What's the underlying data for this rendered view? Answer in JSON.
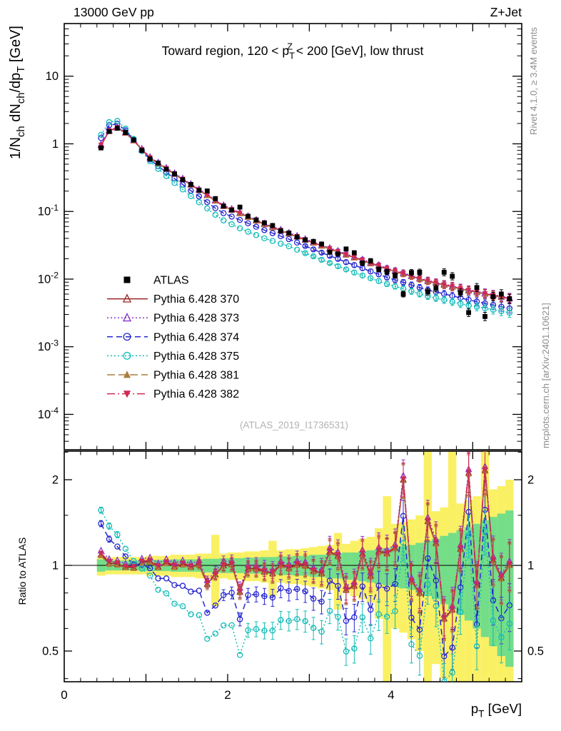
{
  "header": {
    "left": "13000 GeV pp",
    "right": "Z+Jet"
  },
  "side_labels": {
    "right_top": "Rivet 4.1.0, ≥ 3.4M events",
    "right_bottom": "mcplots.cern.ch [arXiv:2401.10621]"
  },
  "watermark": "(ATLAS_2019_I1736531)",
  "chart_data": {
    "type": "line",
    "title": "Toward region, 120 < p_{T}^{Z} < 200 [GeV], low thrust",
    "xlabel": "p_{T} [GeV]",
    "ylabel": "1/N_{ch} dN_{ch}/dp_{T} [GeV]",
    "ratio_ylabel": "Ratio to ATLAS",
    "x_range": [
      0,
      5.6
    ],
    "y_scale": "log",
    "y_range": [
      3e-05,
      60
    ],
    "ratio_scale": "log",
    "ratio_range": [
      0.39,
      2.52
    ],
    "x_ticks_labeled": [
      0,
      2,
      4
    ],
    "y_ticks": [
      {
        "exp": 1,
        "label": "10"
      },
      {
        "exp": 0,
        "label": "1"
      },
      {
        "exp": -1,
        "label": "10^{-1}"
      },
      {
        "exp": -2,
        "label": "10^{-2}"
      },
      {
        "exp": -3,
        "label": "10^{-3}"
      },
      {
        "exp": -4,
        "label": "10^{-4}"
      }
    ],
    "ratio_ticks_labeled": [
      2,
      1,
      0.5
    ],
    "ratio_ticks_minor": [
      0.4,
      0.6,
      0.7,
      0.8,
      0.9,
      1.5,
      2.5
    ],
    "x_bin_width": 0.1,
    "x": [
      0.45,
      0.55,
      0.65,
      0.75,
      0.85,
      0.95,
      1.05,
      1.15,
      1.25,
      1.35,
      1.45,
      1.55,
      1.65,
      1.75,
      1.85,
      1.95,
      2.05,
      2.15,
      2.25,
      2.35,
      2.45,
      2.55,
      2.65,
      2.75,
      2.85,
      2.95,
      3.05,
      3.15,
      3.25,
      3.35,
      3.45,
      3.55,
      3.65,
      3.75,
      3.85,
      3.95,
      4.05,
      4.15,
      4.25,
      4.35,
      4.45,
      4.55,
      4.65,
      4.75,
      4.85,
      4.95,
      5.05,
      5.15,
      5.25,
      5.35,
      5.45
    ],
    "series": [
      {
        "name": "ATLAS",
        "color": "#000000",
        "marker": "square-filled",
        "line": "none",
        "values": [
          0.87,
          1.52,
          1.7,
          1.47,
          1.14,
          0.8,
          0.6,
          0.52,
          0.42,
          0.36,
          0.295,
          0.251,
          0.205,
          0.201,
          0.155,
          0.12,
          0.105,
          0.116,
          0.085,
          0.075,
          0.068,
          0.062,
          0.052,
          0.048,
          0.042,
          0.038,
          0.036,
          0.033,
          0.025,
          0.0235,
          0.0279,
          0.0245,
          0.0172,
          0.0186,
          0.0139,
          0.0128,
          0.0113,
          0.006,
          0.0125,
          0.0126,
          0.0065,
          0.0073,
          0.0126,
          0.011,
          0.0063,
          0.0032,
          0.0075,
          0.0028,
          0.0055,
          0.006,
          0.0051
        ]
      },
      {
        "name": "Pythia 6.428 370",
        "color": "#9a2525",
        "marker": "triangle-up-open",
        "line": "solid",
        "values": [
          0.95,
          1.55,
          1.72,
          1.45,
          1.12,
          0.82,
          0.62,
          0.514,
          0.429,
          0.357,
          0.298,
          0.248,
          0.207,
          0.173,
          0.144,
          0.12,
          0.106,
          0.0937,
          0.0828,
          0.0731,
          0.0646,
          0.0581,
          0.0522,
          0.047,
          0.0423,
          0.038,
          0.0344,
          0.031,
          0.028,
          0.0254,
          0.0229,
          0.0208,
          0.0189,
          0.0171,
          0.0156,
          0.0141,
          0.013,
          0.012,
          0.011,
          0.0101,
          0.0093,
          0.00875,
          0.0082,
          0.0077,
          0.0072,
          0.00676,
          0.0064,
          0.00605,
          0.00573,
          0.00542,
          0.00513
        ]
      },
      {
        "name": "Pythia 6.428 373",
        "color": "#8833cc",
        "marker": "triangle-up-open",
        "line": "dotted",
        "values": [
          0.98,
          1.6,
          1.77,
          1.49,
          1.15,
          0.845,
          0.639,
          0.529,
          0.442,
          0.368,
          0.307,
          0.255,
          0.213,
          0.178,
          0.148,
          0.124,
          0.109,
          0.0965,
          0.0853,
          0.0753,
          0.0665,
          0.0598,
          0.0538,
          0.0484,
          0.0436,
          0.0391,
          0.0354,
          0.0319,
          0.0288,
          0.0262,
          0.0236,
          0.0214,
          0.0195,
          0.0176,
          0.0161,
          0.0145,
          0.0134,
          0.0124,
          0.0113,
          0.0104,
          0.00958,
          0.00901,
          0.00845,
          0.00793,
          0.00742,
          0.00696,
          0.00659,
          0.00623,
          0.0059,
          0.00558,
          0.00528
        ]
      },
      {
        "name": "Pythia 6.428 374",
        "color": "#2727cf",
        "marker": "circle-open",
        "line": "dashed",
        "values": [
          1.22,
          1.88,
          1.98,
          1.58,
          1.15,
          0.804,
          0.586,
          0.468,
          0.378,
          0.307,
          0.25,
          0.203,
          0.167,
          0.137,
          0.112,
          0.0944,
          0.0841,
          0.075,
          0.0668,
          0.0594,
          0.053,
          0.0478,
          0.0432,
          0.039,
          0.0347,
          0.0308,
          0.0275,
          0.0246,
          0.0221,
          0.0199,
          0.0178,
          0.0161,
          0.0145,
          0.013,
          0.0118,
          0.0106,
          0.00972,
          0.00895,
          0.00818,
          0.00749,
          0.00688,
          0.00646,
          0.00604,
          0.00565,
          0.00527,
          0.00493,
          0.00466,
          0.00439,
          0.00415,
          0.00391,
          0.00369
        ]
      },
      {
        "name": "Pythia 6.428 375",
        "color": "#14bdb8",
        "marker": "circle-open",
        "line": "dotted",
        "values": [
          1.36,
          2.09,
          2.18,
          1.68,
          1.18,
          0.779,
          0.552,
          0.427,
          0.335,
          0.264,
          0.212,
          0.169,
          0.137,
          0.111,
          0.0893,
          0.0738,
          0.0647,
          0.0562,
          0.0503,
          0.0448,
          0.0401,
          0.0366,
          0.0334,
          0.0306,
          0.0272,
          0.0242,
          0.0217,
          0.0193,
          0.0173,
          0.0155,
          0.0139,
          0.0125,
          0.0113,
          0.0103,
          0.00936,
          0.00846,
          0.0078,
          0.0072,
          0.0066,
          0.00606,
          0.00558,
          0.00525,
          0.00492,
          0.00462,
          0.00432,
          0.00409,
          0.0039,
          0.0037,
          0.00352,
          0.00335,
          0.00318
        ]
      },
      {
        "name": "Pythia 6.428 381",
        "color": "#ab7c3e",
        "marker": "triangle-up-filled",
        "line": "longdash",
        "values": [
          0.94,
          1.53,
          1.7,
          1.44,
          1.11,
          0.812,
          0.614,
          0.509,
          0.425,
          0.353,
          0.295,
          0.246,
          0.205,
          0.171,
          0.143,
          0.119,
          0.105,
          0.0928,
          0.082,
          0.0724,
          0.064,
          0.0575,
          0.0517,
          0.0465,
          0.0419,
          0.0376,
          0.0341,
          0.0307,
          0.0277,
          0.0251,
          0.0227,
          0.0206,
          0.0187,
          0.0169,
          0.0154,
          0.014,
          0.0129,
          0.0119,
          0.0109,
          0.01,
          0.00921,
          0.00866,
          0.00812,
          0.00762,
          0.00713,
          0.00669,
          0.00634,
          0.00599,
          0.00567,
          0.00537,
          0.00508
        ]
      },
      {
        "name": "Pythia 6.428 382",
        "color": "#d02a52",
        "marker": "triangle-down-filled",
        "line": "dashdot",
        "values": [
          0.96,
          1.57,
          1.74,
          1.46,
          1.13,
          0.828,
          0.626,
          0.519,
          0.433,
          0.361,
          0.301,
          0.25,
          0.209,
          0.175,
          0.145,
          0.121,
          0.107,
          0.0946,
          0.0836,
          0.0738,
          0.0652,
          0.0587,
          0.0527,
          0.0475,
          0.0427,
          0.0384,
          0.0347,
          0.0313,
          0.0283,
          0.0257,
          0.0231,
          0.021,
          0.0191,
          0.0173,
          0.0158,
          0.0142,
          0.0131,
          0.0121,
          0.0111,
          0.0102,
          0.00939,
          0.00884,
          0.00828,
          0.00778,
          0.00727,
          0.00683,
          0.00646,
          0.00611,
          0.00579,
          0.00547,
          0.00518
        ]
      }
    ],
    "bands": {
      "yellow": {
        "color": "#faf064",
        "half_width": [
          0.08,
          0.07,
          0.07,
          0.07,
          0.07,
          0.07,
          0.08,
          0.08,
          0.08,
          0.09,
          0.09,
          0.09,
          0.1,
          0.1,
          0.28,
          0.1,
          0.11,
          0.11,
          0.12,
          0.12,
          0.13,
          0.22,
          0.13,
          0.14,
          0.14,
          0.15,
          0.16,
          0.17,
          0.18,
          0.3,
          0.19,
          0.22,
          0.24,
          0.26,
          0.35,
          0.75,
          0.4,
          0.42,
          0.45,
          0.5,
          1.6,
          0.55,
          0.6,
          1.6,
          0.65,
          0.7,
          0.75,
          1.6,
          0.85,
          0.9,
          1.0
        ]
      },
      "green": {
        "color": "#74dd88",
        "half_width": [
          0.05,
          0.04,
          0.04,
          0.04,
          0.04,
          0.04,
          0.045,
          0.045,
          0.045,
          0.05,
          0.05,
          0.05,
          0.05,
          0.055,
          0.055,
          0.06,
          0.06,
          0.06,
          0.065,
          0.065,
          0.07,
          0.07,
          0.075,
          0.075,
          0.08,
          0.08,
          0.09,
          0.09,
          0.1,
          0.1,
          0.11,
          0.11,
          0.12,
          0.13,
          0.14,
          0.15,
          0.16,
          0.17,
          0.18,
          0.2,
          0.22,
          0.24,
          0.27,
          0.3,
          0.33,
          0.36,
          0.4,
          0.44,
          0.48,
          0.52,
          0.56
        ]
      }
    },
    "legend_position": "middle-left"
  }
}
